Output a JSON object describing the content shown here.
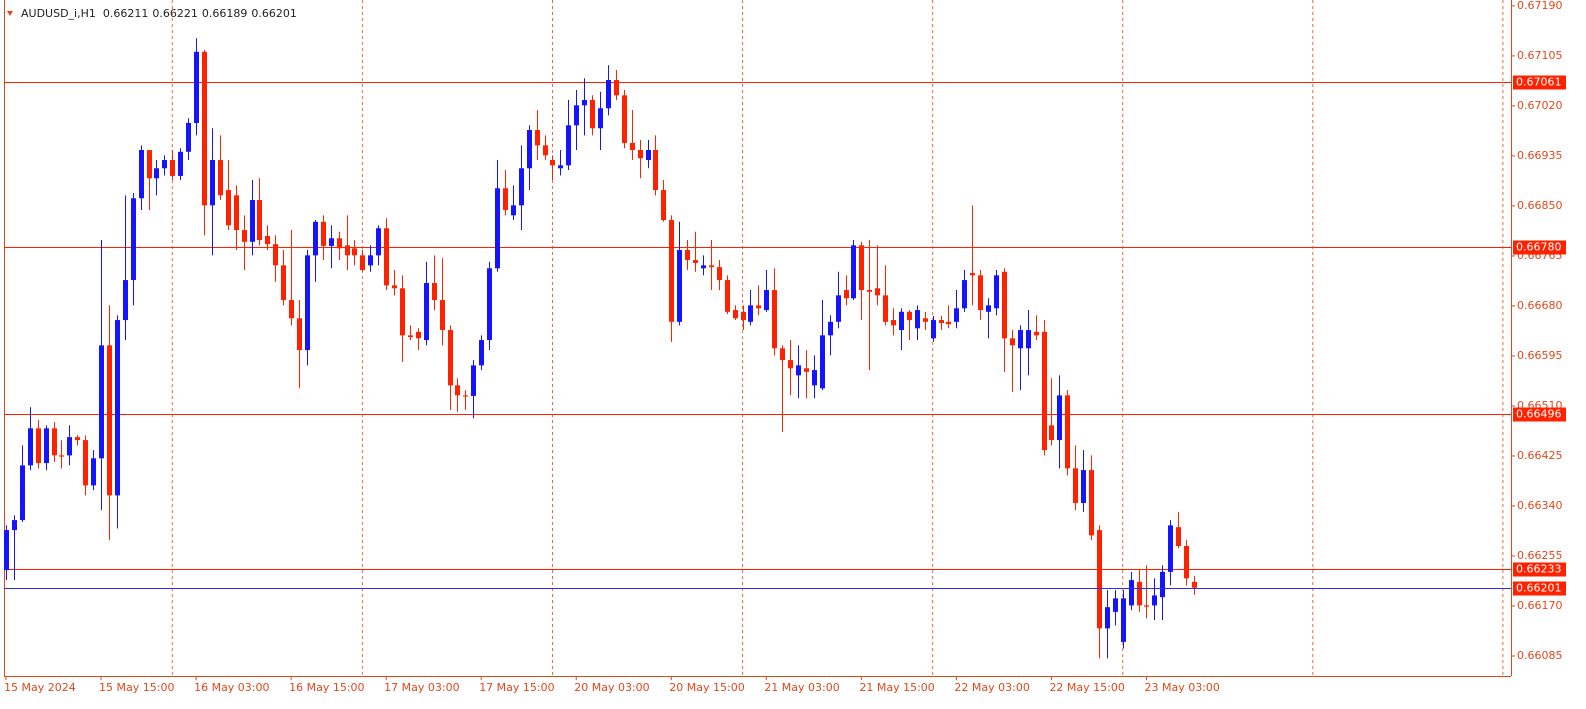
{
  "chart_data": {
    "type": "candlestick",
    "symbol": "AUDUSD_i,H1",
    "bull_color": "#1414ff",
    "bear_color": "#ff2200",
    "axis_color": "#e0481c",
    "grid_color": "#ee6a3c",
    "grid": true,
    "level_color": "#ff2200",
    "price_line_color": "#2b2bff",
    "ylim": [
      0.66051,
      0.672
    ],
    "yticks": [
      {
        "value": 0.6719,
        "label": "0.67190"
      },
      0.67105,
      {
        "value": 0.6702,
        "label": "0.67020"
      },
      0.66935,
      {
        "value": 0.6685,
        "label": "0.66850"
      },
      0.66765,
      {
        "value": 0.6668,
        "label": "0.66680"
      },
      0.66595,
      {
        "value": 0.6651,
        "label": "0.66510"
      },
      0.66425,
      {
        "value": 0.6634,
        "label": "0.66340"
      },
      0.66255,
      {
        "value": 0.6617,
        "label": "0.66170"
      },
      0.66085
    ],
    "levels": [
      0.67061,
      {
        "value": 0.6678,
        "label": "0.66780"
      },
      0.66496,
      0.66233
    ],
    "categories": [
      "15 May 2024",
      null,
      null,
      null,
      null,
      null,
      null,
      null,
      null,
      null,
      null,
      null,
      "15 May 15:00",
      null,
      null,
      null,
      null,
      null,
      null,
      null,
      null,
      null,
      null,
      null,
      "16 May 03:00",
      null,
      null,
      null,
      null,
      null,
      null,
      null,
      null,
      null,
      null,
      null,
      "16 May 15:00",
      null,
      null,
      null,
      null,
      null,
      null,
      null,
      null,
      null,
      null,
      null,
      "17 May 03:00",
      null,
      null,
      null,
      null,
      null,
      null,
      null,
      null,
      null,
      null,
      null,
      "17 May 15:00",
      null,
      null,
      null,
      null,
      null,
      null,
      null,
      null,
      null,
      null,
      null,
      "20 May 03:00",
      null,
      null,
      null,
      null,
      null,
      null,
      null,
      null,
      null,
      null,
      null,
      "20 May 15:00",
      null,
      null,
      null,
      null,
      null,
      null,
      null,
      null,
      null,
      null,
      null,
      "21 May 03:00",
      null,
      null,
      null,
      null,
      null,
      null,
      null,
      null,
      null,
      null,
      null,
      "21 May 15:00",
      null,
      null,
      null,
      null,
      null,
      null,
      null,
      null,
      null,
      null,
      null,
      "22 May 03:00",
      null,
      null,
      null,
      null,
      null,
      null,
      null,
      null,
      null,
      null,
      null,
      "22 May 15:00",
      null,
      null,
      null,
      null,
      null,
      null,
      null,
      null,
      null,
      null,
      null,
      "23 May 03:00",
      null,
      null,
      null,
      null,
      null,
      null
    ],
    "open": [
      0.66231,
      0.66299,
      0.66316,
      0.66409,
      0.66472,
      0.66413,
      0.66472,
      0.66426,
      0.66426,
      0.66457,
      0.66452,
      0.66375,
      0.66421,
      0.66613,
      0.66358,
      0.66656,
      0.66724,
      0.66863,
      0.66945,
      0.66897,
      0.66914,
      0.66928,
      0.66901,
      0.66942,
      0.66991,
      0.67112,
      0.66851,
      0.66928,
      0.66877,
      0.66868,
      0.66809,
      0.66789,
      0.6686,
      0.66799,
      0.66785,
      0.66749,
      0.6669,
      0.66659,
      0.66605,
      0.66766,
      0.66823,
      0.66782,
      0.66795,
      0.66783,
      0.66778,
      0.66766,
      0.66749,
      0.66766,
      0.66812,
      0.66715,
      0.6671,
      0.6663,
      0.66636,
      0.66622,
      0.66719,
      0.6669,
      0.66639,
      0.66545,
      0.66528,
      0.66527,
      0.66579,
      0.66622,
      0.66744,
      0.6688,
      0.66834,
      0.66851,
      0.66914,
      0.66979,
      0.66953,
      0.66928,
      0.66914,
      0.66919,
      0.66987,
      0.67021,
      0.6703,
      0.66982,
      0.67016,
      0.67064,
      0.67038,
      0.66957,
      0.66945,
      0.66928,
      0.66945,
      0.66877,
      0.66826,
      0.66653,
      0.66775,
      0.66758,
      0.66744,
      0.66749,
      0.66746,
      0.66724,
      0.66673,
      0.6667,
      0.66653,
      0.66681,
      0.66673,
      0.66707,
      0.66608,
      0.66588,
      0.66562,
      0.66574,
      0.66545,
      0.6654,
      0.6663,
      0.66653,
      0.66707,
      0.66693,
      0.66783,
      0.66707,
      0.6671,
      0.66698,
      0.66656,
      0.66639,
      0.6667,
      0.66642,
      0.66659,
      0.66625,
      0.66656,
      0.66653,
      0.66653,
      0.66676,
      0.66736,
      0.66732,
      0.6667,
      0.66676,
      0.66738,
      0.66625,
      0.66608,
      0.66608,
      0.66636,
      0.66636,
      0.66477,
      0.66452,
      0.66528,
      0.66404,
      0.66345,
      0.66401,
      0.66299,
      0.66132,
      0.6616,
      0.66109,
      0.66171,
      0.66211,
      0.66171,
      0.66171,
      0.66185,
      0.66228,
      0.66304,
      0.66272,
      0.66211
    ],
    "high": [
      0.66307,
      0.66324,
      0.66443,
      0.66508,
      0.66486,
      0.66477,
      0.66483,
      0.66452,
      0.66477,
      0.6646,
      0.6646,
      0.66435,
      0.66792,
      0.66681,
      0.66664,
      0.66868,
      0.66872,
      0.66953,
      0.66945,
      0.66928,
      0.66936,
      0.66945,
      0.66948,
      0.66999,
      0.67135,
      0.67115,
      0.66982,
      0.6697,
      0.66928,
      0.66885,
      0.66834,
      0.66894,
      0.66897,
      0.66817,
      0.668,
      0.66775,
      0.66809,
      0.6669,
      0.66775,
      0.66826,
      0.66834,
      0.66817,
      0.66806,
      0.66834,
      0.66792,
      0.66775,
      0.66783,
      0.66817,
      0.66829,
      0.66741,
      0.66732,
      0.66647,
      0.66642,
      0.66755,
      0.66766,
      0.66761,
      0.66647,
      0.66557,
      0.66537,
      0.66588,
      0.6663,
      0.66755,
      0.66928,
      0.66911,
      0.66885,
      0.66953,
      0.66987,
      0.67013,
      0.6697,
      0.66936,
      0.66945,
      0.6703,
      0.67047,
      0.67067,
      0.67038,
      0.67044,
      0.67089,
      0.67081,
      0.67047,
      0.67013,
      0.66962,
      0.66962,
      0.6697,
      0.66894,
      0.66834,
      0.66823,
      0.66792,
      0.66806,
      0.66766,
      0.66792,
      0.66758,
      0.66732,
      0.66681,
      0.66681,
      0.66707,
      0.66715,
      0.66741,
      0.66744,
      0.66613,
      0.66622,
      0.66613,
      0.66605,
      0.66596,
      0.6669,
      0.66664,
      0.66738,
      0.66732,
      0.66792,
      0.66789,
      0.66792,
      0.66783,
      0.66749,
      0.66676,
      0.66676,
      0.66673,
      0.66681,
      0.6667,
      0.66663,
      0.66663,
      0.66681,
      0.66707,
      0.66741,
      0.66851,
      0.66741,
      0.66693,
      0.66741,
      0.66744,
      0.66639,
      0.66647,
      0.66673,
      0.66664,
      0.66656,
      0.66557,
      0.66562,
      0.66537,
      0.66443,
      0.66435,
      0.66426,
      0.66307,
      0.66197,
      0.66197,
      0.66197,
      0.66228,
      0.66231,
      0.66239,
      0.66217,
      0.66239,
      0.66316,
      0.6633,
      0.66282,
      0.66221
    ],
    "low": [
      0.66214,
      0.66214,
      0.66313,
      0.66401,
      0.66404,
      0.66401,
      0.66415,
      0.66404,
      0.66409,
      0.66443,
      0.66358,
      0.66367,
      0.66333,
      0.66282,
      0.66302,
      0.66622,
      0.66681,
      0.66843,
      0.66843,
      0.66868,
      0.66902,
      0.66894,
      0.66894,
      0.66928,
      0.6697,
      0.668,
      0.66766,
      0.6686,
      0.66809,
      0.66775,
      0.66741,
      0.66766,
      0.66783,
      0.66775,
      0.66721,
      0.66681,
      0.66647,
      0.6654,
      0.66579,
      0.66721,
      0.66758,
      0.66744,
      0.66758,
      0.66741,
      0.66749,
      0.66738,
      0.66738,
      0.66749,
      0.66707,
      0.66698,
      0.66585,
      0.66622,
      0.66605,
      0.66613,
      0.66673,
      0.66613,
      0.66503,
      0.665,
      0.66503,
      0.66489,
      0.66571,
      0.66605,
      0.66738,
      0.66834,
      0.66826,
      0.66809,
      0.66877,
      0.66928,
      0.66928,
      0.66894,
      0.66902,
      0.66911,
      0.66945,
      0.6697,
      0.6697,
      0.66945,
      0.67004,
      0.6703,
      0.66948,
      0.66928,
      0.66897,
      0.66914,
      0.66868,
      0.66823,
      0.66619,
      0.66647,
      0.66741,
      0.66738,
      0.66732,
      0.66707,
      0.66707,
      0.66666,
      0.66656,
      0.66639,
      0.66647,
      0.66664,
      0.6667,
      0.66596,
      0.66466,
      0.66528,
      0.66523,
      0.66523,
      0.66523,
      0.66537,
      0.66596,
      0.66642,
      0.66681,
      0.6669,
      0.66656,
      0.66571,
      0.66681,
      0.66647,
      0.6663,
      0.66605,
      0.66622,
      0.66622,
      0.66639,
      0.66619,
      0.66639,
      0.66642,
      0.66642,
      0.6667,
      0.66681,
      0.66656,
      0.66625,
      0.66664,
      0.66568,
      0.66534,
      0.66537,
      0.66562,
      0.66622,
      0.66426,
      0.66443,
      0.66404,
      0.66392,
      0.66333,
      0.6633,
      0.66282,
      0.66081,
      0.66081,
      0.66137,
      0.66098,
      0.66163,
      0.6616,
      0.66149,
      0.66146,
      0.66146,
      0.66205,
      0.66268,
      0.66205,
      0.66189
    ],
    "close": [
      0.66299,
      0.66316,
      0.66409,
      0.66472,
      0.66413,
      0.66472,
      0.66426,
      0.66425,
      0.66457,
      0.66452,
      0.66375,
      0.66421,
      0.66613,
      0.66358,
      0.66656,
      0.66724,
      0.66863,
      0.66945,
      0.66897,
      0.66914,
      0.66928,
      0.66901,
      0.66942,
      0.66991,
      0.67112,
      0.66851,
      0.66928,
      0.66868,
      0.66817,
      0.66809,
      0.66789,
      0.6686,
      0.66792,
      0.66785,
      0.66749,
      0.6669,
      0.66659,
      0.66605,
      0.66766,
      0.66823,
      0.66782,
      0.66795,
      0.66778,
      0.66766,
      0.66766,
      0.66741,
      0.66766,
      0.66812,
      0.66715,
      0.6671,
      0.6663,
      0.66627,
      0.66625,
      0.66719,
      0.6669,
      0.66639,
      0.66545,
      0.66528,
      0.66527,
      0.66579,
      0.66622,
      0.66744,
      0.6688,
      0.66843,
      0.66851,
      0.66914,
      0.66979,
      0.66953,
      0.66936,
      0.66919,
      0.66919,
      0.66987,
      0.67021,
      0.6703,
      0.66982,
      0.67016,
      0.67064,
      0.67038,
      0.66957,
      0.66945,
      0.66931,
      0.66945,
      0.66877,
      0.66826,
      0.66653,
      0.66775,
      0.66758,
      0.66753,
      0.66749,
      0.66746,
      0.66724,
      0.6667,
      0.66659,
      0.66656,
      0.66681,
      0.66676,
      0.66707,
      0.66608,
      0.66588,
      0.66574,
      0.66579,
      0.66568,
      0.66571,
      0.6663,
      0.66653,
      0.66698,
      0.66693,
      0.66783,
      0.66707,
      0.66704,
      0.66698,
      0.66653,
      0.66647,
      0.6667,
      0.66656,
      0.66673,
      0.66653,
      0.66656,
      0.66651,
      0.66649,
      0.66676,
      0.66724,
      0.66732,
      0.66673,
      0.66681,
      0.66732,
      0.66625,
      0.66613,
      0.66639,
      0.66639,
      0.6663,
      0.66435,
      0.66452,
      0.66528,
      0.66404,
      0.66345,
      0.66401,
      0.6629,
      0.66132,
      0.66168,
      0.66183,
      0.66183,
      0.66214,
      0.66171,
      0.6617,
      0.66188,
      0.66228,
      0.66307,
      0.66272,
      0.66217,
      0.66201
    ]
  }
}
